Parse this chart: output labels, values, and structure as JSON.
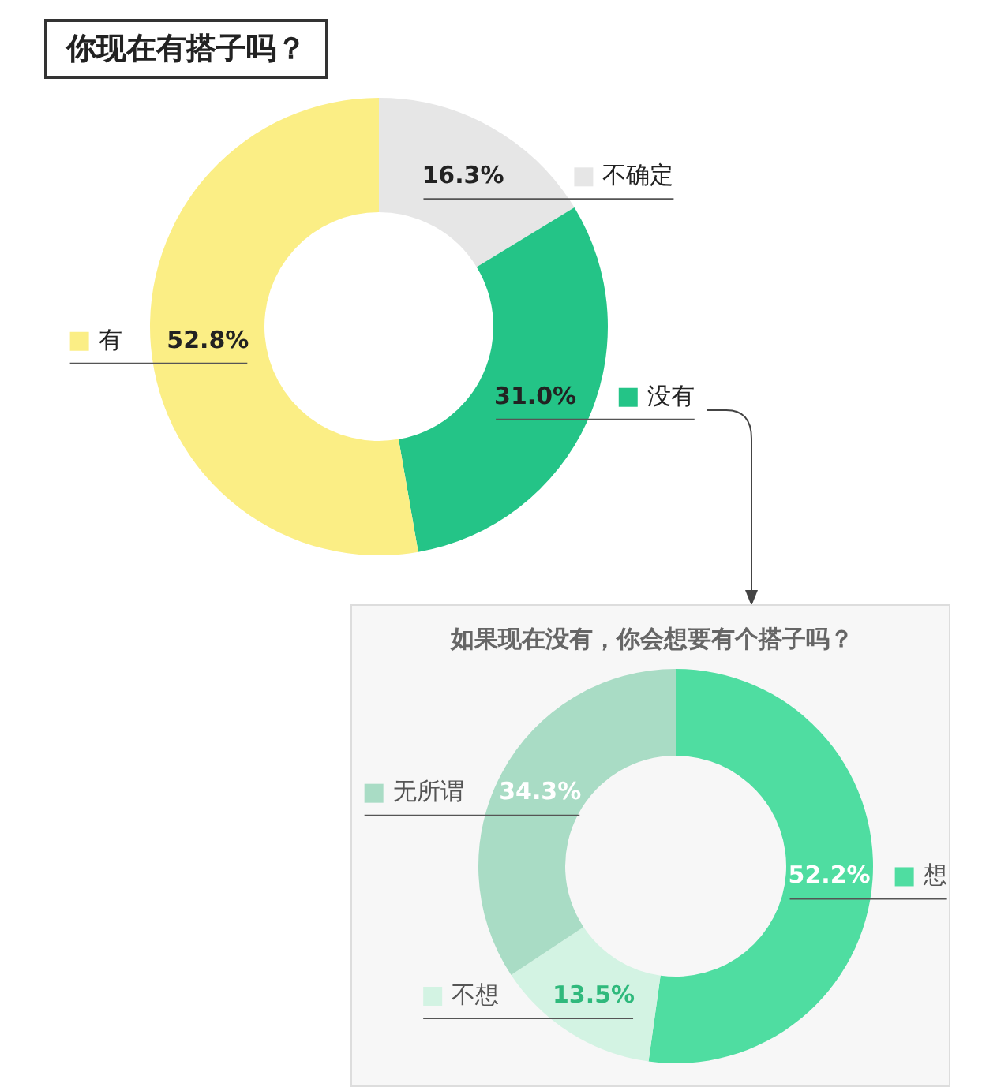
{
  "chart_data": [
    {
      "type": "donut",
      "title": "你现在有搭子吗？",
      "categories": [
        "不确定",
        "没有",
        "有"
      ],
      "values": [
        16.3,
        31.0,
        52.8
      ],
      "colors": [
        "#e6e6e6",
        "#24c487",
        "#fbee85"
      ],
      "value_labels": [
        "16.3%",
        "31.0%",
        "52.8%"
      ],
      "legend": "right"
    },
    {
      "type": "donut",
      "title": "如果现在没有，你会想要有个搭子吗？",
      "categories": [
        "想",
        "不想",
        "无所谓"
      ],
      "values": [
        52.2,
        13.5,
        34.3
      ],
      "colors": [
        "#4fdda1",
        "#d3f3e3",
        "#a9dcc5"
      ],
      "value_labels": [
        "52.2%",
        "13.5%",
        "34.3%"
      ],
      "legend": "bottom left"
    }
  ]
}
